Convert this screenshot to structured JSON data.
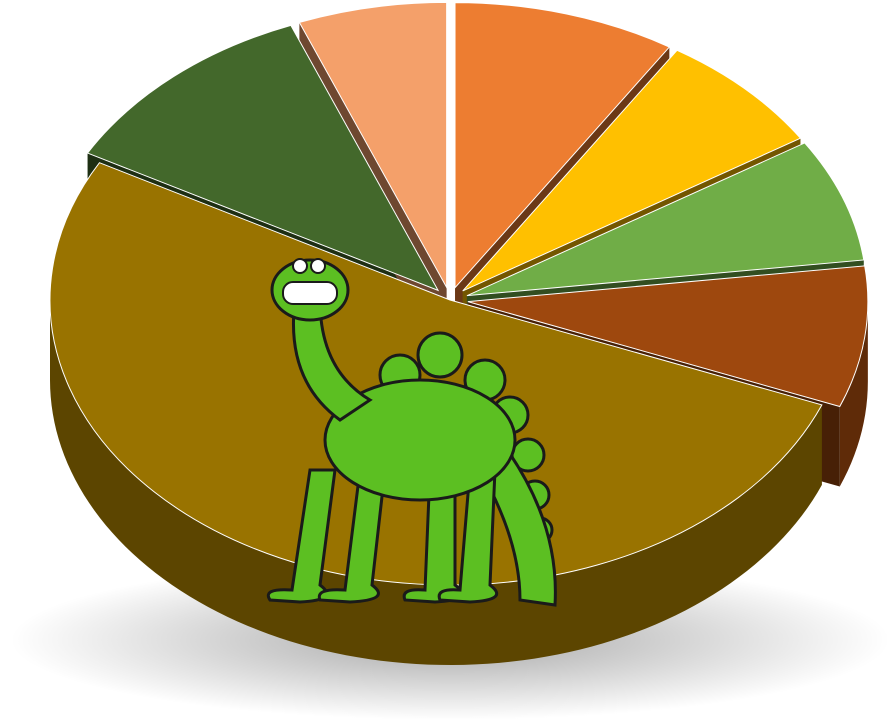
{
  "chart_data": {
    "type": "pie3d",
    "values": [
      9,
      7,
      7,
      8,
      52,
      11,
      6
    ],
    "colors": [
      "#ed7d31",
      "#ffc000",
      "#70ad47",
      "#9e480e",
      "#997300",
      "#43682b",
      "#f4a06a"
    ],
    "exploded": [
      true,
      true,
      true,
      true,
      false,
      true,
      true
    ]
  }
}
